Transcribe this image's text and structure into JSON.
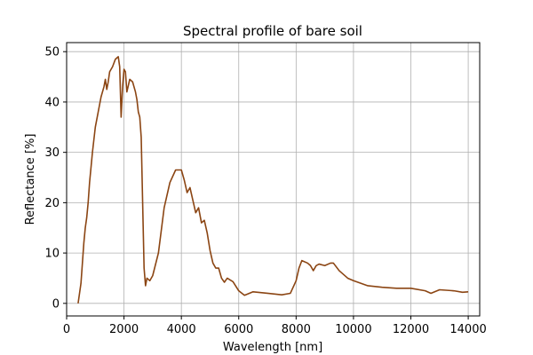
{
  "chart_data": {
    "type": "line",
    "title": "Spectral profile of bare soil",
    "xlabel": "Wavelength [nm]",
    "ylabel": "Reflectance [%]",
    "xlim": [
      0,
      14400
    ],
    "ylim": [
      -2.5,
      51.8
    ],
    "xticks": [
      0,
      2000,
      4000,
      6000,
      8000,
      10000,
      12000,
      14000
    ],
    "yticks": [
      0,
      10,
      20,
      30,
      40,
      50
    ],
    "grid": true,
    "colors": {
      "line": "#8b4513",
      "grid": "#b0b0b0",
      "axis": "#000000"
    },
    "series": [
      {
        "x": [
          400,
          500,
          550,
          600,
          650,
          700,
          750,
          800,
          900,
          1000,
          1100,
          1200,
          1300,
          1350,
          1400,
          1450,
          1500,
          1600,
          1700,
          1800,
          1850,
          1900,
          1950,
          2000,
          2050,
          2100,
          2200,
          2300,
          2400,
          2450,
          2500,
          2550,
          2600,
          2650,
          2700,
          2750,
          2800,
          2900,
          3000,
          3200,
          3400,
          3600,
          3800,
          4000,
          4100,
          4200,
          4300,
          4400,
          4500,
          4600,
          4700,
          4800,
          4900,
          5000,
          5100,
          5200,
          5300,
          5400,
          5500,
          5600,
          5800,
          6000,
          6200,
          6500,
          7000,
          7500,
          7800,
          8000,
          8100,
          8200,
          8400,
          8500,
          8600,
          8700,
          8800,
          9000,
          9200,
          9300,
          9500,
          9800,
          10000,
          10500,
          11000,
          11500,
          12000,
          12500,
          12700,
          13000,
          13500,
          13800,
          14000
        ],
        "y": [
          0,
          4,
          8,
          12,
          15,
          17,
          20,
          24,
          30,
          35,
          38,
          41,
          43,
          44.5,
          42.5,
          44,
          46,
          47,
          48.5,
          49,
          47,
          37,
          43,
          46.5,
          46,
          42,
          44.5,
          44,
          42,
          40.5,
          38,
          37,
          33,
          20,
          7,
          3.5,
          5,
          4.5,
          5.5,
          10,
          19,
          24,
          26.5,
          26.5,
          24.5,
          22,
          23,
          20.5,
          18,
          19,
          16,
          16.5,
          14,
          10.5,
          8,
          7,
          7,
          5,
          4.2,
          5,
          4.3,
          2.5,
          1.6,
          2.3,
          2,
          1.7,
          2,
          4.5,
          7,
          8.5,
          8,
          7.5,
          6.5,
          7.5,
          7.8,
          7.5,
          8,
          8,
          6.5,
          5,
          4.5,
          3.5,
          3.2,
          3,
          3,
          2.5,
          2,
          2.7,
          2.5,
          2.2,
          2.3
        ]
      }
    ]
  }
}
